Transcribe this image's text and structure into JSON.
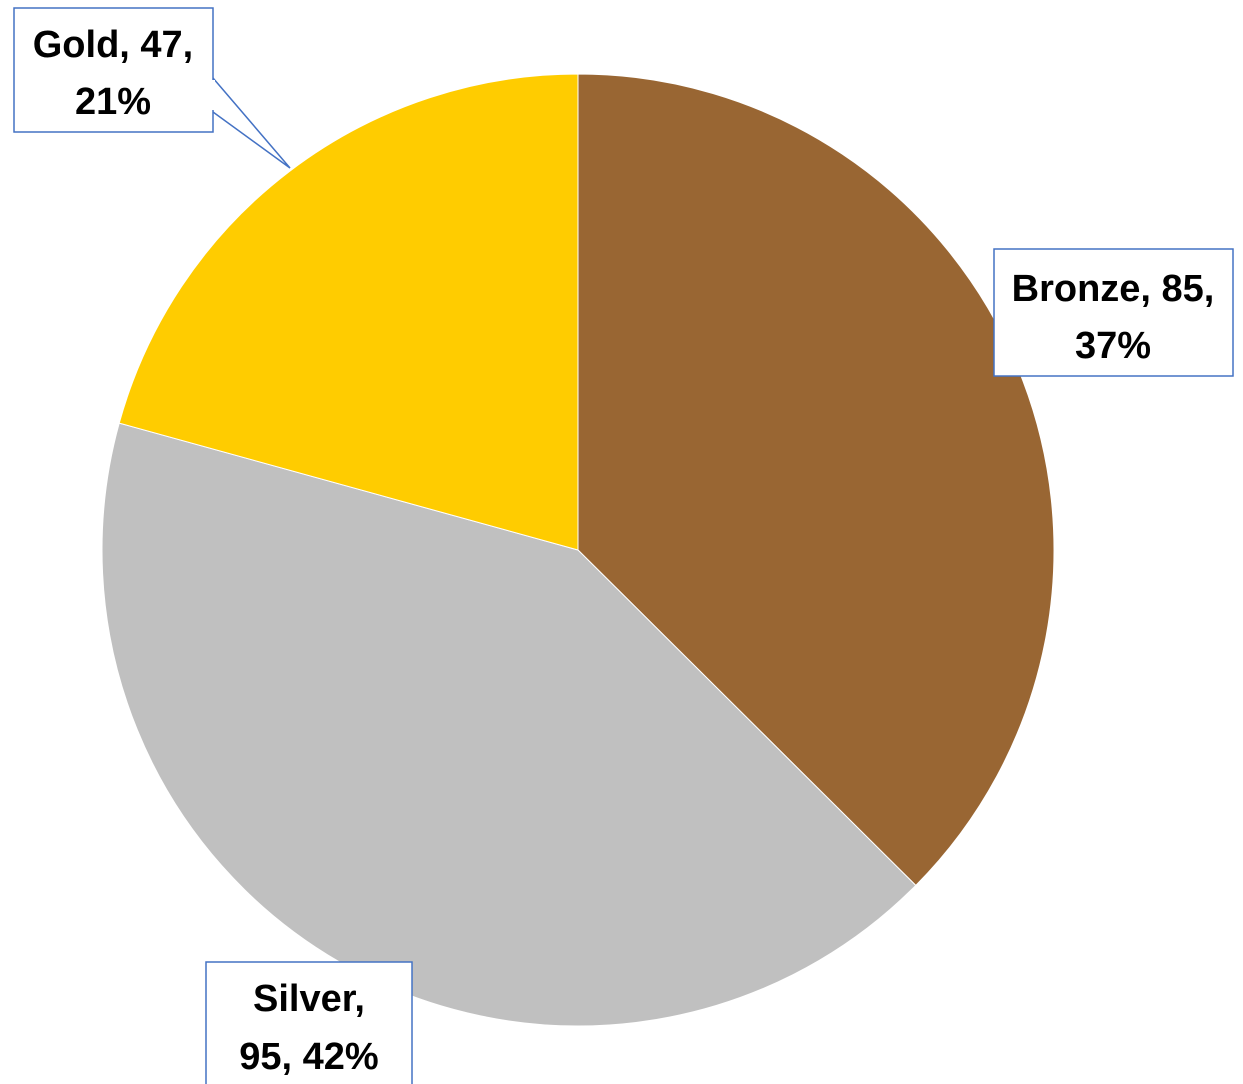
{
  "chart_data": {
    "type": "pie",
    "title": "",
    "start_angle_deg": 0,
    "direction": "clockwise",
    "slices": [
      {
        "name": "Bronze",
        "value": 85,
        "percent": "37%",
        "color": "#996633",
        "label_line1": "Bronze, 85,",
        "label_line2": "37%"
      },
      {
        "name": "Silver",
        "value": 95,
        "percent": "42%",
        "color": "#c0c0c0",
        "label_line1": "Silver,",
        "label_line2": "95, 42%"
      },
      {
        "name": "Gold",
        "value": 47,
        "percent": "21%",
        "color": "#ffcc00",
        "label_line1": "Gold, 47,",
        "label_line2": "21%"
      }
    ],
    "legend": "none",
    "label_border_color": "#4472c4"
  }
}
